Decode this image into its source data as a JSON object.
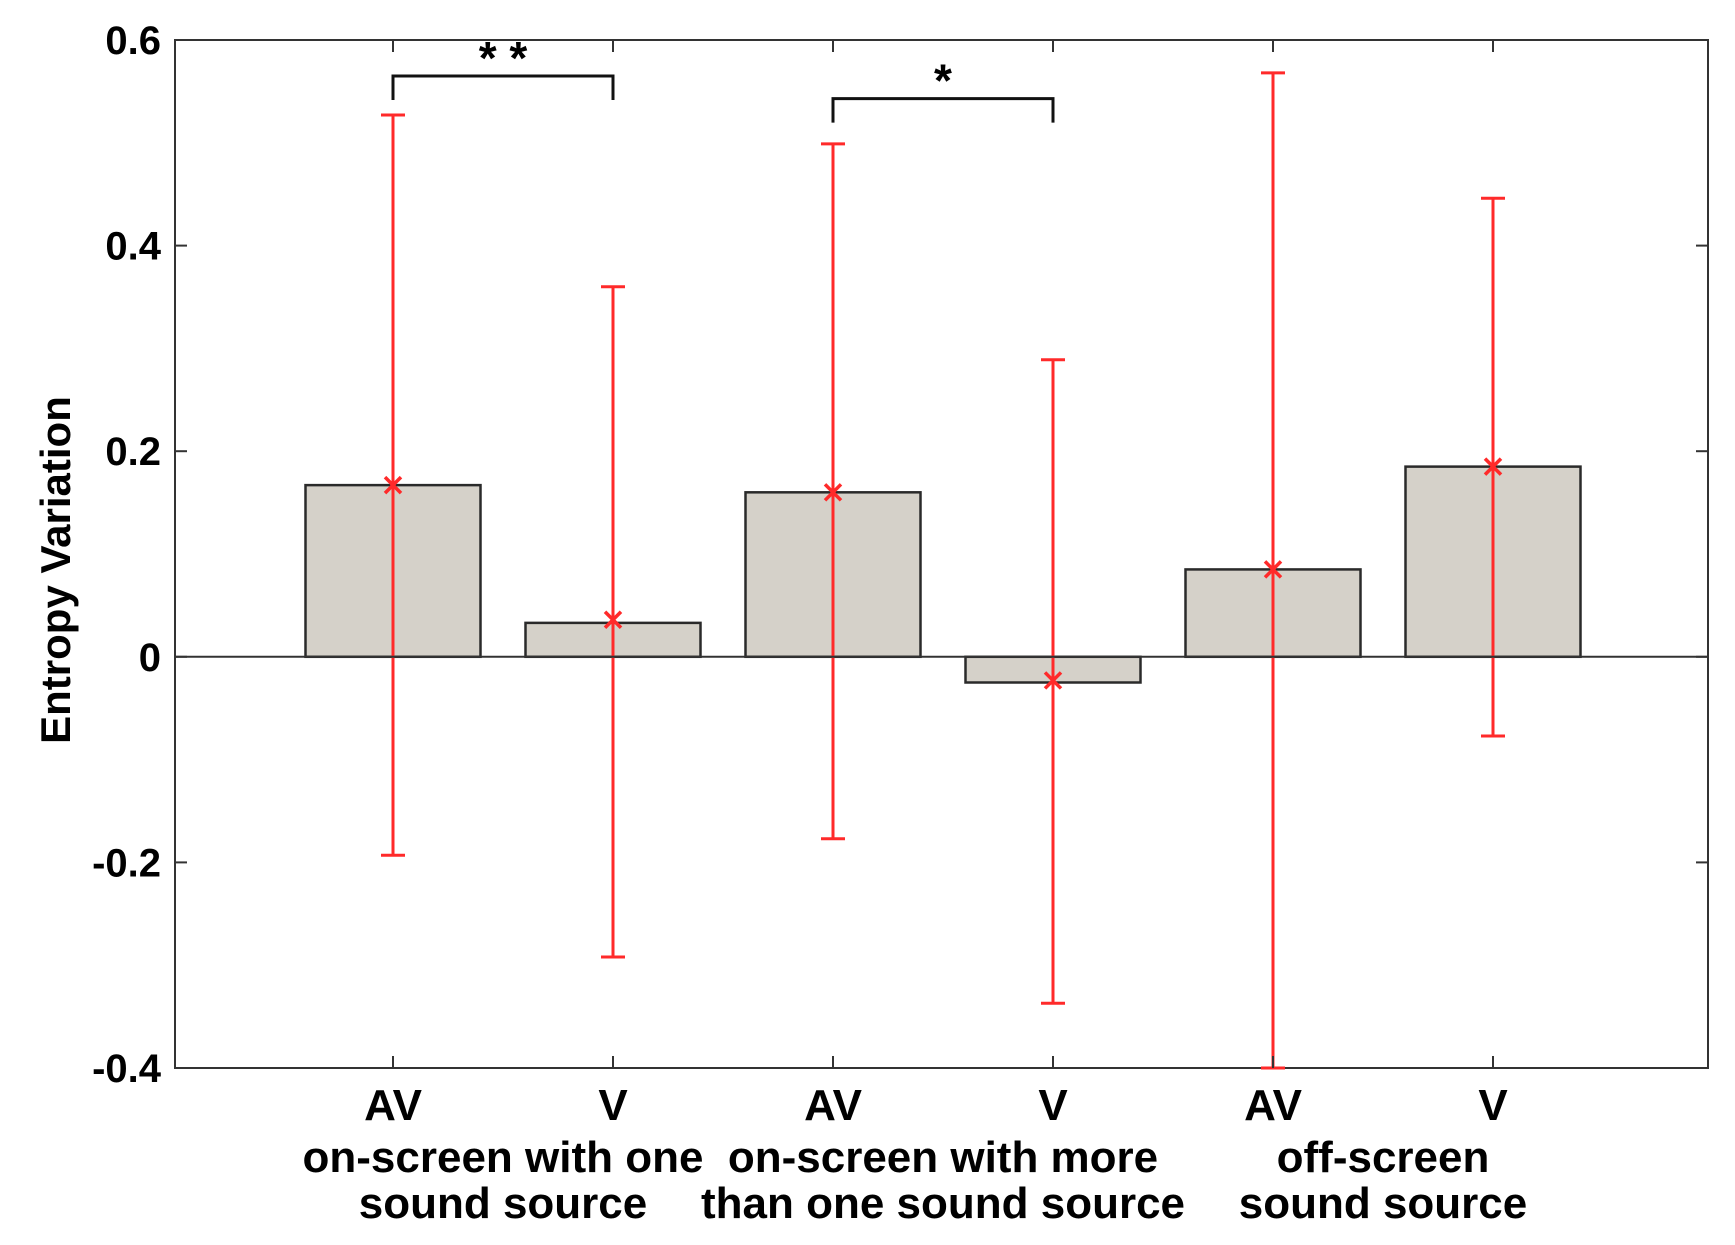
{
  "chart_data": {
    "type": "bar",
    "ylabel": "Entropy Variation",
    "ylim": [
      -0.4,
      0.6
    ],
    "yticks": [
      -0.4,
      -0.2,
      0,
      0.2,
      0.4,
      0.6
    ],
    "ytick_labels": [
      "-0.4",
      "-0.2",
      "0",
      "0.2",
      "0.4",
      "0.6"
    ],
    "categories": [
      "AV",
      "V",
      "AV",
      "V",
      "AV",
      "V"
    ],
    "values": [
      0.167,
      0.033,
      0.16,
      -0.025,
      0.085,
      0.185
    ],
    "means": [
      0.167,
      0.036,
      0.16,
      -0.023,
      0.085,
      0.185
    ],
    "error_low": [
      -0.193,
      -0.292,
      -0.177,
      -0.337,
      -0.4,
      -0.077
    ],
    "error_high": [
      0.527,
      0.36,
      0.499,
      0.289,
      0.568,
      0.446
    ],
    "bar_color": "#d5d1c9",
    "error_color": "#ff2a2a",
    "groups": [
      {
        "line1": "on-screen with one",
        "line2": "sound source"
      },
      {
        "line1": "on-screen with more",
        "line2": "than one sound source"
      },
      {
        "line1": "off-screen",
        "line2": "sound source"
      }
    ],
    "significance": [
      {
        "from": 0,
        "to": 1,
        "label": "* *",
        "y": 0.565
      },
      {
        "from": 2,
        "to": 3,
        "label": "*",
        "y": 0.543
      }
    ],
    "grid": false
  }
}
